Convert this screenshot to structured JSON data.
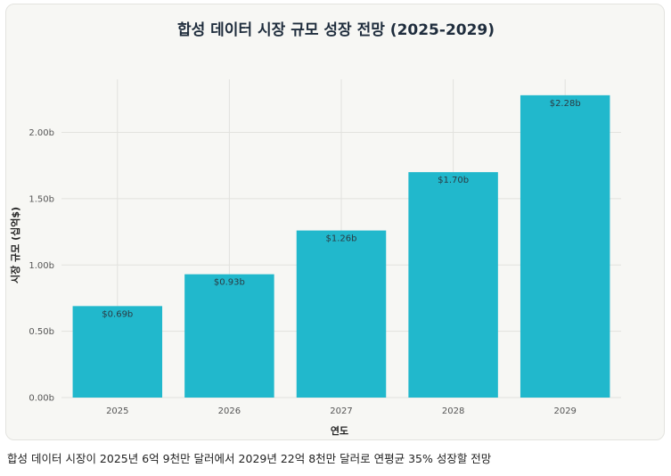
{
  "chart_data": {
    "type": "bar",
    "title": "합성 데이터 시장 규모 성장 전망 (2025-2029)",
    "xlabel": "연도",
    "ylabel": "시장 규모 (십억$)",
    "categories": [
      "2025",
      "2026",
      "2027",
      "2028",
      "2029"
    ],
    "values": [
      0.69,
      0.93,
      1.26,
      1.7,
      2.28
    ],
    "data_labels": [
      "$0.69b",
      "$0.93b",
      "$1.26b",
      "$1.70b",
      "$2.28b"
    ],
    "ylim": [
      0,
      2.4
    ],
    "yticks": [
      0,
      0.5,
      1.0,
      1.5,
      2.0
    ],
    "ytick_labels": [
      "0.00b",
      "0.50b",
      "1.00b",
      "1.50b",
      "2.00b"
    ],
    "grid": true,
    "bar_color": "#21b8cc",
    "grid_color": "#e2e2de"
  },
  "caption": "합성 데이터 시장이 2025년 6억 9천만 달러에서 2029년 22억 8천만 달러로 연평균 35% 성장할 전망"
}
